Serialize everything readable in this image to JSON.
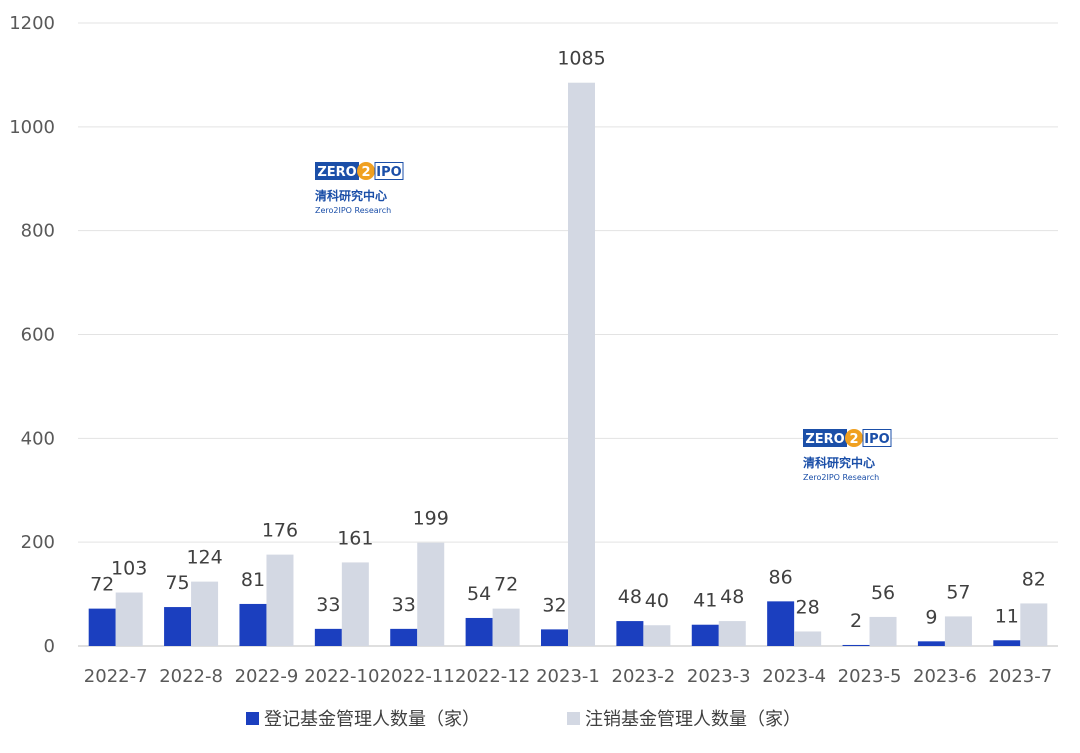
{
  "chart_data": {
    "type": "bar",
    "categories": [
      "2022-7",
      "2022-8",
      "2022-9",
      "2022-10",
      "2022-11",
      "2022-12",
      "2023-1",
      "2023-2",
      "2023-3",
      "2023-4",
      "2023-5",
      "2023-6",
      "2023-7"
    ],
    "series": [
      {
        "name": "登记基金管理人数量（家）",
        "values": [
          72,
          75,
          81,
          33,
          33,
          54,
          32,
          48,
          41,
          86,
          2,
          9,
          11
        ],
        "color": "#1b3fbf"
      },
      {
        "name": "注销基金管理人数量（家）",
        "values": [
          103,
          124,
          176,
          161,
          199,
          72,
          1085,
          40,
          48,
          28,
          56,
          57,
          82
        ],
        "color": "#d3d8e3"
      }
    ],
    "ylim": [
      0,
      1200
    ],
    "yticks": [
      0,
      200,
      400,
      600,
      800,
      1000,
      1200
    ],
    "grid": true,
    "legend_position": "bottom"
  },
  "watermarks": [
    {
      "logo_left": "ZERO",
      "logo_mid": "2",
      "logo_right": "IPO",
      "cn": "清科研究中心",
      "en": "Zero2IPO Research"
    },
    {
      "logo_left": "ZERO",
      "logo_mid": "2",
      "logo_right": "IPO",
      "cn": "清科研究中心",
      "en": "Zero2IPO Research"
    }
  ]
}
